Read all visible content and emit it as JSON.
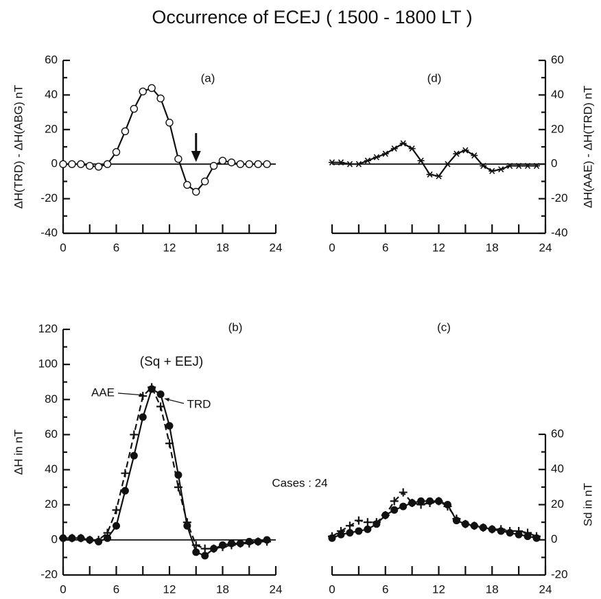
{
  "title": "Occurrence of  ECEJ ( 1500 - 1800  LT )",
  "chart_data": [
    {
      "type": "line",
      "label": "(a)",
      "ylabel": "ΔH(TRD) - ΔH(ABG) nT",
      "y_axis_side": "left",
      "zeroline": true,
      "x": [
        0,
        1,
        2,
        3,
        4,
        5,
        6,
        7,
        8,
        9,
        10,
        11,
        12,
        13,
        14,
        15,
        16,
        17,
        18,
        19,
        20,
        21,
        22,
        23
      ],
      "xlim": [
        0,
        24
      ],
      "xticks": [
        0,
        6,
        12,
        18,
        24
      ],
      "xminorticks": [
        3,
        9,
        15,
        21
      ],
      "ylim": [
        -40,
        60
      ],
      "yticks": [
        -40,
        -20,
        0,
        20,
        40,
        60
      ],
      "yminorticks": [
        -30,
        -10,
        10,
        30,
        50
      ],
      "arrow_at": 15,
      "series": [
        {
          "color": "#111",
          "marker": "circle-open",
          "dashed": false,
          "values": [
            0,
            0,
            0,
            -1,
            -1.5,
            0,
            7,
            19,
            32,
            42,
            44,
            38,
            24,
            3,
            -12,
            -16,
            -10,
            -1,
            2,
            1,
            0,
            0,
            0,
            0
          ]
        }
      ]
    },
    {
      "type": "line",
      "label": "(d)",
      "ylabel": "ΔH(AAE) - ΔH(TRD) nT",
      "y_axis_side": "right",
      "zeroline": true,
      "x": [
        0,
        1,
        2,
        3,
        4,
        5,
        6,
        7,
        8,
        9,
        10,
        11,
        12,
        13,
        14,
        15,
        16,
        17,
        18,
        19,
        20,
        21,
        22,
        23
      ],
      "xlim": [
        0,
        24
      ],
      "xticks": [
        0,
        6,
        12,
        18,
        24
      ],
      "xminorticks": [
        3,
        9,
        15,
        21
      ],
      "ylim": [
        -40,
        60
      ],
      "yticks": [
        -40,
        -20,
        0,
        20,
        40,
        60
      ],
      "yminorticks": [
        -30,
        -10,
        10,
        30,
        50
      ],
      "series": [
        {
          "color": "#111",
          "marker": "star",
          "dashed": false,
          "values": [
            1,
            1,
            0,
            0,
            2,
            4,
            6,
            9,
            12,
            9,
            2,
            -6,
            -7,
            0,
            6,
            8,
            5,
            -1,
            -4,
            -3,
            -1,
            -1,
            -1,
            -1
          ]
        }
      ]
    },
    {
      "type": "line",
      "label": "(b)",
      "ylabel": "ΔH in nT",
      "y_axis_side": "left",
      "zeroline": true,
      "annotations": [
        "(Sq + EEJ)",
        "Cases : 24"
      ],
      "x": [
        0,
        1,
        2,
        3,
        4,
        5,
        6,
        7,
        8,
        9,
        10,
        11,
        12,
        13,
        14,
        15,
        16,
        17,
        18,
        19,
        20,
        21,
        22,
        23
      ],
      "xlim": [
        0,
        24
      ],
      "xticks": [
        0,
        6,
        12,
        18,
        24
      ],
      "xminorticks": [
        3,
        9,
        15,
        21
      ],
      "ylim": [
        -20,
        120
      ],
      "yticks": [
        -20,
        0,
        20,
        40,
        60,
        80,
        100,
        120
      ],
      "yminorticks": [
        -10,
        10,
        30,
        50,
        70,
        90,
        110
      ],
      "series": [
        {
          "name": "AAE",
          "color": "#111",
          "marker": "plus",
          "dashed": true,
          "values": [
            1,
            1,
            1,
            0,
            0,
            4,
            17,
            38,
            60,
            82,
            87,
            76,
            55,
            30,
            10,
            -3,
            -5,
            -5,
            -4,
            -3,
            -2,
            -2,
            -1,
            -1
          ]
        },
        {
          "name": "TRD",
          "color": "#111",
          "marker": "dot",
          "dashed": false,
          "values": [
            1,
            1,
            1,
            0,
            -1,
            1,
            8,
            28,
            48,
            70,
            86,
            83,
            65,
            37,
            8,
            -7,
            -9,
            -5,
            -3,
            -2,
            -2,
            -1,
            -1,
            0
          ]
        }
      ]
    },
    {
      "type": "line",
      "label": "(c)",
      "ylabel": "Sd in nT",
      "y_axis_side": "right",
      "zeroline": false,
      "x": [
        0,
        1,
        2,
        3,
        4,
        5,
        6,
        7,
        8,
        9,
        10,
        11,
        12,
        13,
        14,
        15,
        16,
        17,
        18,
        19,
        20,
        21,
        22,
        23
      ],
      "xlim": [
        0,
        24
      ],
      "xticks": [
        0,
        6,
        12,
        18,
        24
      ],
      "xminorticks": [
        3,
        9,
        15,
        21
      ],
      "ylim": [
        -20,
        60
      ],
      "yticks": [
        -20,
        0,
        20,
        40,
        60
      ],
      "yminorticks": [
        -10,
        10,
        30,
        50
      ],
      "series": [
        {
          "color": "#111",
          "marker": "plus",
          "dashed": true,
          "values": [
            2,
            5,
            8,
            11,
            10,
            10,
            14,
            22,
            27,
            21,
            20,
            21,
            22,
            19,
            12,
            9,
            8,
            7,
            6,
            6,
            5,
            5,
            4,
            2
          ]
        },
        {
          "color": "#111",
          "marker": "dot",
          "dashed": false,
          "values": [
            1,
            3,
            4,
            5,
            6,
            9,
            14,
            17,
            19,
            21,
            22,
            22,
            22,
            20,
            11,
            9,
            8,
            7,
            6,
            5,
            4,
            3,
            2,
            1
          ]
        }
      ]
    }
  ]
}
